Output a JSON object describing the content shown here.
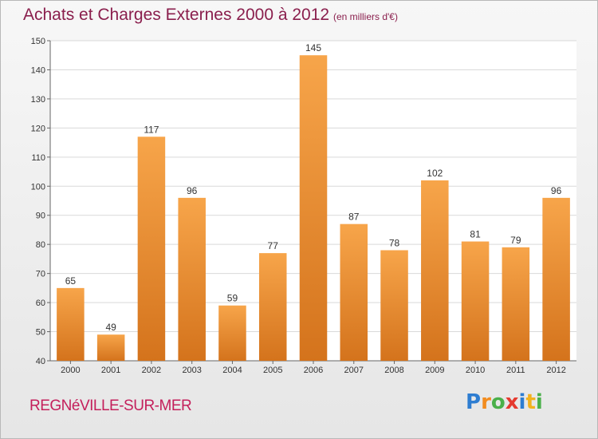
{
  "title": "Achats et Charges Externes 2000 à 2012",
  "subtitle": "(en milliers d'€)",
  "place_name": "REGNéVILLE-SUR-MER",
  "logo": {
    "letters": [
      "P",
      "r",
      "o",
      "x",
      "i",
      "t",
      "i"
    ],
    "colors": [
      "#2e7dd1",
      "#f28c1e",
      "#4ab04a",
      "#e53a2f",
      "#2e7dd1",
      "#f2b21e",
      "#4ab04a"
    ]
  },
  "colors": {
    "bar_light": "#f7a54a",
    "bar_dark": "#d4731c",
    "text": "#8a1f4d"
  },
  "chart_data": {
    "type": "bar",
    "categories": [
      "2000",
      "2001",
      "2002",
      "2003",
      "2004",
      "2005",
      "2006",
      "2007",
      "2008",
      "2009",
      "2010",
      "2011",
      "2012"
    ],
    "values": [
      65,
      49,
      117,
      96,
      59,
      77,
      145,
      87,
      78,
      102,
      81,
      79,
      96
    ],
    "ylim": [
      40,
      150
    ],
    "yticks": [
      40,
      50,
      60,
      70,
      80,
      90,
      100,
      110,
      120,
      130,
      140,
      150
    ],
    "grid": true,
    "data_labels": true
  }
}
